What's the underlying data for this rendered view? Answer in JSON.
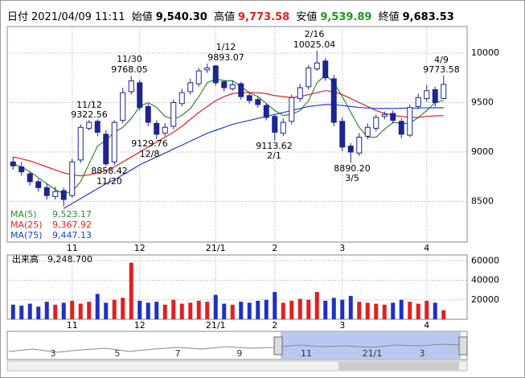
{
  "header": [
    {
      "label": "日付",
      "value": "2021/04/09 11:11"
    },
    {
      "label": "始値",
      "value": "9,540.30"
    },
    {
      "label": "高値",
      "value": "9,773.58"
    },
    {
      "label": "安値",
      "value": "9,539.89"
    },
    {
      "label": "終値",
      "value": "9,683.53"
    }
  ],
  "chart_data": {
    "type": "candlestick",
    "open": [
      8900,
      8850,
      8780,
      8700,
      8640,
      8550,
      8610,
      8560,
      8920,
      9240,
      9310,
      9180,
      8900,
      9320,
      9610,
      9700,
      9460,
      9290,
      9190,
      9260,
      9490,
      9610,
      9690,
      9830,
      9870,
      9710,
      9640,
      9690,
      9570,
      9530,
      9470,
      9360,
      9190,
      9310,
      9540,
      9660,
      9840,
      9920,
      9740,
      9310,
      9060,
      8990,
      9160,
      9240,
      9360,
      9390,
      9310,
      9170,
      9460,
      9540,
      9630,
      9540.3
    ],
    "high": [
      8950,
      8900,
      8800,
      8730,
      8680,
      8650,
      8640,
      8930,
      9280,
      9322.56,
      9330,
      9220,
      9320,
      9650,
      9768.05,
      9730,
      9490,
      9320,
      9290,
      9530,
      9640,
      9740,
      9850,
      9893.07,
      9880,
      9730,
      9720,
      9710,
      9600,
      9560,
      9490,
      9380,
      9340,
      9580,
      9690,
      9880,
      10025.04,
      9950,
      9780,
      9350,
      9090,
      9190,
      9290,
      9380,
      9410,
      9420,
      9340,
      9480,
      9590,
      9680,
      9660,
      9773.58
    ],
    "low": [
      8820,
      8760,
      8660,
      8600,
      8520,
      8520,
      8450,
      8540,
      8890,
      9220,
      9160,
      8858.42,
      8870,
      9290,
      9580,
      9420,
      9260,
      9129.76,
      9160,
      9230,
      9460,
      9580,
      9660,
      9800,
      9670,
      9610,
      9620,
      9530,
      9490,
      9450,
      9320,
      9113.62,
      9160,
      9280,
      9510,
      9630,
      9820,
      9720,
      9260,
      9010,
      8890.2,
      8960,
      9130,
      9210,
      9330,
      9290,
      9140,
      9150,
      9430,
      9510,
      9460,
      9539.89
    ],
    "close": [
      8860,
      8800,
      8700,
      8640,
      8560,
      8600,
      8520,
      8900,
      9250,
      9300,
      9200,
      8880,
      9300,
      9600,
      9720,
      9450,
      9300,
      9180,
      9250,
      9500,
      9600,
      9700,
      9820,
      9850,
      9700,
      9650,
      9680,
      9560,
      9520,
      9480,
      9350,
      9200,
      9300,
      9550,
      9650,
      9850,
      9900,
      9750,
      9300,
      9050,
      9000,
      9150,
      9250,
      9350,
      9380,
      9320,
      9180,
      9450,
      9550,
      9620,
      9500,
      9683.53
    ],
    "ylim": [
      8090,
      10260
    ],
    "yticks": [
      8500,
      9000,
      9500,
      10000
    ],
    "grid": true,
    "xticks": [
      {
        "value": 7,
        "label": "11"
      },
      {
        "value": 15,
        "label": "12"
      },
      {
        "value": 24,
        "label": "21/1"
      },
      {
        "value": 31,
        "label": "2"
      },
      {
        "value": 39,
        "label": "3"
      },
      {
        "value": 49,
        "label": "4"
      }
    ],
    "up_color": "#ffffff",
    "down_color": "#1c2590",
    "ma": [
      {
        "name": "MA(5)",
        "color": "#2e8b2e",
        "legend_value": "9,523.17",
        "values": [
          8880,
          8850,
          8800,
          8740,
          8680,
          8620,
          8580,
          8600,
          8700,
          8880,
          9060,
          9120,
          9200,
          9250,
          9340,
          9460,
          9500,
          9450,
          9360,
          9330,
          9370,
          9440,
          9560,
          9700,
          9740,
          9720,
          9720,
          9660,
          9600,
          9560,
          9490,
          9420,
          9370,
          9380,
          9420,
          9520,
          9700,
          9780,
          9700,
          9560,
          9400,
          9250,
          9150,
          9150,
          9230,
          9300,
          9290,
          9290,
          9350,
          9420,
          9500,
          9523.17
        ]
      },
      {
        "name": "MA(25)",
        "color": "#e02020",
        "legend_value": "9,367.92",
        "values": [
          8950,
          8930,
          8910,
          8880,
          8850,
          8820,
          8790,
          8770,
          8760,
          8770,
          8790,
          8810,
          8850,
          8900,
          8950,
          9000,
          9050,
          9100,
          9150,
          9200,
          9260,
          9330,
          9400,
          9460,
          9520,
          9560,
          9590,
          9600,
          9600,
          9600,
          9590,
          9570,
          9560,
          9550,
          9560,
          9580,
          9600,
          9620,
          9610,
          9580,
          9540,
          9500,
          9460,
          9420,
          9390,
          9370,
          9360,
          9350,
          9350,
          9360,
          9365,
          9367.92
        ]
      },
      {
        "name": "MA(75)",
        "color": "#2040d8",
        "legend_value": "9,447.13",
        "values": [
          null,
          null,
          null,
          null,
          null,
          null,
          8430,
          8480,
          8530,
          8580,
          8630,
          8680,
          8720,
          8770,
          8820,
          8870,
          8910,
          8950,
          8990,
          9030,
          9070,
          9110,
          9150,
          9190,
          9220,
          9250,
          9280,
          9300,
          9320,
          9340,
          9360,
          9380,
          9400,
          9420,
          9440,
          9460,
          9470,
          9480,
          9480,
          9470,
          9460,
          9450,
          9445,
          9440,
          9440,
          9440,
          9442,
          9444,
          9445,
          9446,
          9447,
          9447.13
        ]
      }
    ],
    "annotations": [
      {
        "date": "11/12",
        "value": 9322.56
      },
      {
        "date": "11/20",
        "value": 8858.42
      },
      {
        "date": "11/30",
        "value": 9768.05
      },
      {
        "date": "12/8",
        "value": 9129.76
      },
      {
        "date": "1/12",
        "value": 9893.07
      },
      {
        "date": "2/1",
        "value": 9113.62
      },
      {
        "date": "2/16",
        "value": 10025.04
      },
      {
        "date": "3/5",
        "value": 8890.2,
        "label": "8890.20"
      },
      {
        "date": "4/9",
        "value": 9773.58
      }
    ],
    "volume": {
      "name": "出来高",
      "label": "9,248.700",
      "up_color": "#e02020",
      "down_color": "#2030c0",
      "ylim": [
        0,
        66000
      ],
      "yticks": [
        20000,
        40000,
        60000
      ],
      "values": [
        15000,
        14000,
        16000,
        13000,
        18000,
        15000,
        17000,
        19000,
        16000,
        18000,
        26000,
        17000,
        20000,
        22000,
        58000,
        19000,
        17000,
        18000,
        15000,
        20000,
        16000,
        17000,
        19000,
        18000,
        25000,
        16000,
        15000,
        18000,
        17000,
        19000,
        20000,
        28000,
        17000,
        19000,
        21000,
        20000,
        28000,
        19000,
        22000,
        20000,
        24000,
        18000,
        17000,
        16000,
        15000,
        17000,
        20000,
        18000,
        16000,
        19000,
        17000,
        9248.7
      ]
    }
  },
  "navigator": {
    "labels": [
      "3",
      "5",
      "7",
      "9",
      "11",
      "21/1",
      "3"
    ]
  }
}
